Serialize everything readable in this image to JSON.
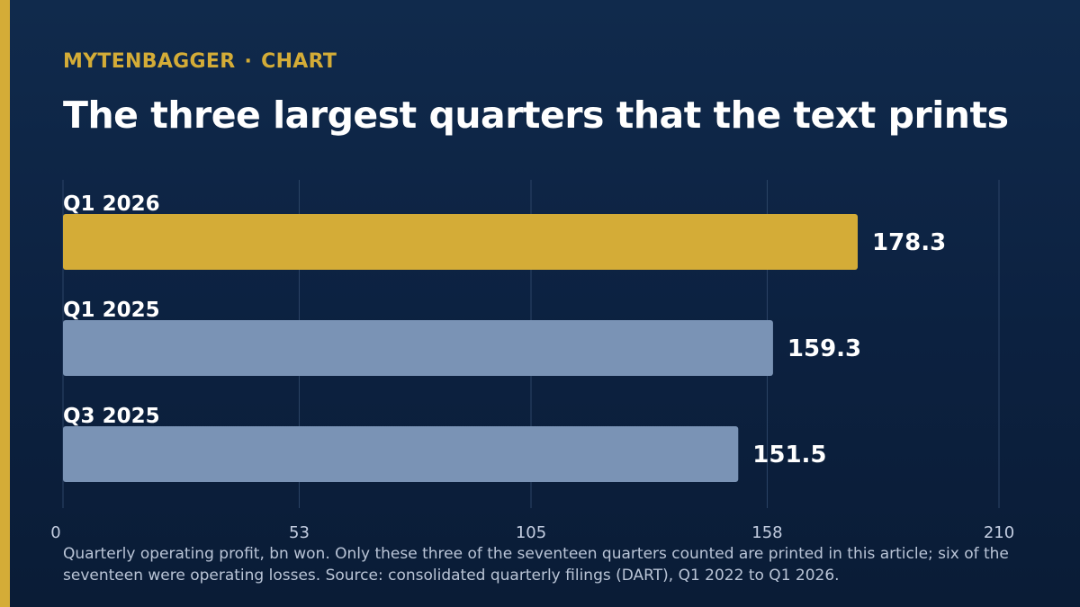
{
  "header": {
    "brand": "MYTENBAGGER",
    "separator": "·",
    "section": "CHART",
    "title": "The three largest quarters that the text prints"
  },
  "chart_data": {
    "type": "bar",
    "orientation": "horizontal",
    "categories": [
      "Q1 2026",
      "Q1 2025",
      "Q3 2025"
    ],
    "values": [
      178.3,
      159.3,
      151.5
    ],
    "value_labels": [
      "178.3",
      "159.3",
      "151.5"
    ],
    "xlim": [
      0,
      210
    ],
    "xticks": [
      0,
      53,
      105,
      158,
      210
    ],
    "grid": true,
    "highlight_index": 0,
    "colors": {
      "highlight": "#d4ac37",
      "default": "#7a93b5",
      "gridline": "#2c4466",
      "tick_label": "#c3cde0",
      "category_label": "#ffffff",
      "value_label": "#ffffff"
    }
  },
  "footnote": "Quarterly operating profit, bn won. Only these three of the seventeen quarters counted are printed in this article; six of the seventeen were operating losses. Source: consolidated quarterly filings (DART), Q1 2022 to Q1 2026."
}
